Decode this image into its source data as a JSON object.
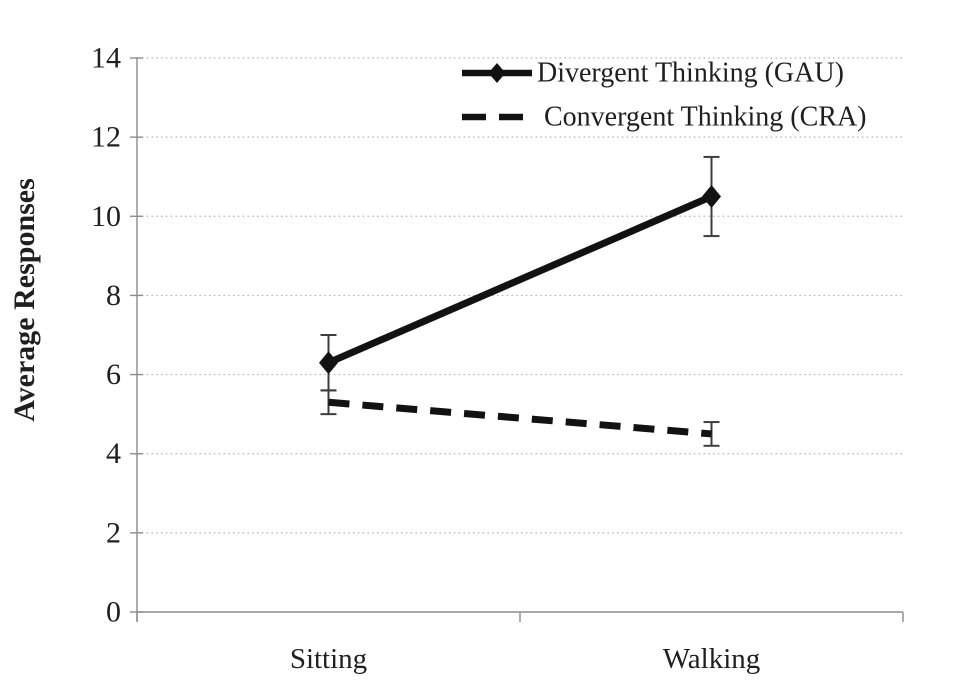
{
  "figure": {
    "background": "#ffffff"
  },
  "chart_data": {
    "type": "line",
    "title": "",
    "xlabel": "",
    "ylabel": "Average Responses",
    "categories": [
      "Sitting",
      "Walking"
    ],
    "series": [
      {
        "name": "Divergent Thinking (GAU)",
        "values": [
          6.3,
          10.5
        ],
        "errors": [
          0.7,
          1.0
        ],
        "line_style": "solid",
        "marker": "diamond"
      },
      {
        "name": "Convergent Thinking (CRA)",
        "values": [
          5.3,
          4.5
        ],
        "errors": [
          0.3,
          0.3
        ],
        "line_style": "dashed",
        "marker": "none"
      }
    ],
    "ylim": [
      0,
      14
    ],
    "yticks": [
      0,
      2,
      4,
      6,
      8,
      10,
      12,
      14
    ],
    "grid": "horizontal-dotted",
    "legend_position": "top-right",
    "colors": {
      "series_line": "#121212",
      "axis_line": "#8c8c8c",
      "gridline": "#b5b5b5",
      "error_bar": "#3d3d3d",
      "text": "#1f1f1f"
    }
  }
}
